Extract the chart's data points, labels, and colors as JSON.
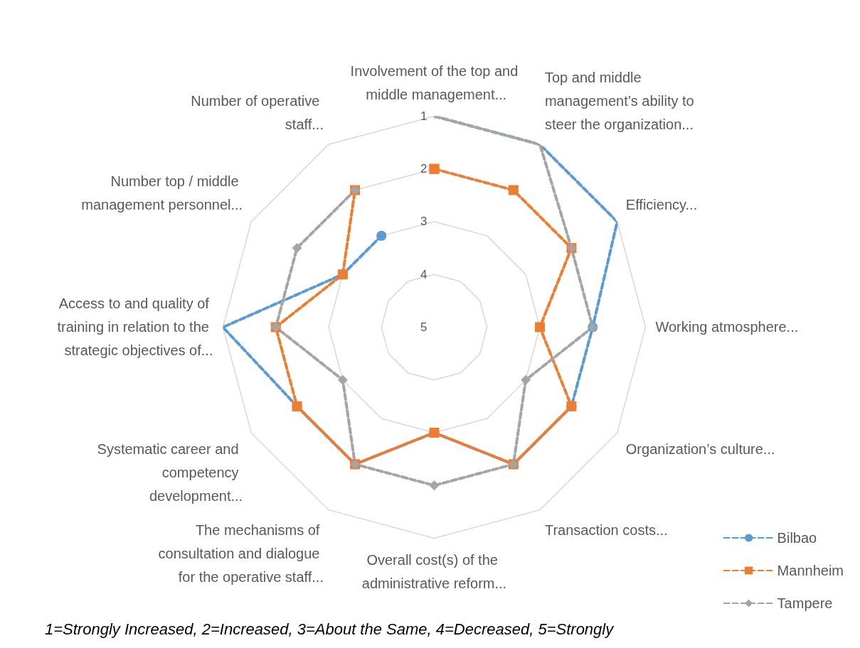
{
  "chart_data": {
    "type": "radar",
    "categories": [
      "Involvement of the top and middle management...",
      "Top and middle management’s ability to steer the organization...",
      "Efficiency...",
      "Working atmosphere...",
      "Organization’s culture...",
      "Transaction costs...",
      "Overall cost(s) of the administrative reform...",
      "The mechanisms of consultation and dialogue for the operative staff...",
      "Systematic career and competency development...",
      "Access to and quality of training in relation to the strategic objectives of...",
      "Number top / middle management personnel...",
      "Number of operative staff..."
    ],
    "series": [
      {
        "name": "Bilbao",
        "color": "#5b9bd5",
        "marker": "circle",
        "line_style": "dashed",
        "values": [
          1,
          1,
          1,
          2,
          2,
          2,
          3,
          2,
          2,
          1,
          3,
          3
        ]
      },
      {
        "name": "Mannheim",
        "color": "#ed7d31",
        "marker": "square",
        "line_style": "dashed",
        "values": [
          2,
          2,
          2,
          3,
          2,
          2,
          3,
          2,
          2,
          2,
          3,
          2
        ]
      },
      {
        "name": "Tampere",
        "color": "#a5a5a5",
        "marker": "diamond",
        "line_style": "dashed",
        "values": [
          1,
          1,
          2,
          2,
          3,
          2,
          2,
          2,
          3,
          2,
          2,
          2
        ]
      }
    ],
    "ylim": [
      5,
      1
    ],
    "yticks": [
      1,
      2,
      3,
      4,
      5
    ],
    "grid": true,
    "legend": "bottom right",
    "annotations": [
      "1=Strongly Increased, 2=Increased, 3=About the Same, 4=Decreased, 5=Strongly"
    ]
  }
}
